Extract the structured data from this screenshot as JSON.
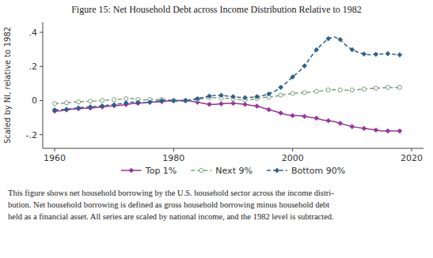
{
  "chart_data": {
    "type": "line",
    "title": "Figure 15: Net Household Debt across Income Distribution Relative to 1982",
    "y_label": "Scaled by NI, relative to 1982",
    "annotations": [
      "This figure shows net household borrowing by the U.S. household sector across the income distri-",
      "bution.  Net household borrowing is defined as gross household borrowing minus household debt",
      "held as a financial asset.  All series are scaled by national income, and the 1982 level is subtracted."
    ],
    "xlim": [
      1958,
      2022
    ],
    "ylim": [
      -0.28,
      0.46
    ],
    "xticks": [
      1960,
      1980,
      2000,
      2020
    ],
    "yticks": [
      {
        "value": -0.2,
        "label": "-.2"
      },
      0,
      {
        "value": 0.2,
        "label": ".2"
      },
      {
        "value": 0.4,
        "label": ".4"
      }
    ],
    "legend": "bottom",
    "grid": false,
    "x": [
      1960,
      1961,
      1962,
      1963,
      1964,
      1965,
      1966,
      1967,
      1968,
      1969,
      1970,
      1971,
      1972,
      1973,
      1974,
      1975,
      1976,
      1977,
      1978,
      1979,
      1980,
      1981,
      1982,
      1983,
      1984,
      1985,
      1986,
      1987,
      1988,
      1989,
      1990,
      1991,
      1992,
      1993,
      1994,
      1995,
      1996,
      1997,
      1998,
      1999,
      2000,
      2001,
      2002,
      2003,
      2004,
      2005,
      2006,
      2007,
      2008,
      2009,
      2010,
      2011,
      2012,
      2013,
      2014,
      2015,
      2016,
      2017,
      2018
    ],
    "series": [
      {
        "name": "Top 1%",
        "color": "#993399",
        "marker": "diamond",
        "line_style": "solid",
        "values": [
          -0.062,
          -0.06,
          -0.055,
          -0.05,
          -0.048,
          -0.045,
          -0.044,
          -0.041,
          -0.037,
          -0.034,
          -0.03,
          -0.028,
          -0.023,
          -0.018,
          -0.016,
          -0.013,
          -0.01,
          -0.008,
          -0.006,
          -0.003,
          -0.001,
          0.001,
          0.0,
          -0.004,
          -0.01,
          -0.016,
          -0.022,
          -0.022,
          -0.019,
          -0.016,
          -0.016,
          -0.019,
          -0.022,
          -0.028,
          -0.033,
          -0.043,
          -0.053,
          -0.063,
          -0.073,
          -0.083,
          -0.088,
          -0.088,
          -0.093,
          -0.098,
          -0.103,
          -0.113,
          -0.118,
          -0.123,
          -0.133,
          -0.143,
          -0.153,
          -0.158,
          -0.163,
          -0.168,
          -0.173,
          -0.178,
          -0.178,
          -0.178,
          -0.178
        ]
      },
      {
        "name": "Next 9%",
        "color": "#7a9e7a",
        "marker": "circle",
        "line_style": "dashed",
        "values": [
          -0.018,
          -0.016,
          -0.013,
          -0.01,
          -0.008,
          -0.006,
          -0.004,
          -0.002,
          0.001,
          0.003,
          0.005,
          0.008,
          0.011,
          0.012,
          0.006,
          0.003,
          0.006,
          0.006,
          0.006,
          0.003,
          0.001,
          -0.001,
          0.0,
          0.003,
          0.006,
          0.012,
          0.017,
          0.017,
          0.014,
          0.012,
          0.01,
          0.006,
          0.003,
          0.006,
          0.012,
          0.017,
          0.02,
          0.024,
          0.032,
          0.037,
          0.042,
          0.044,
          0.047,
          0.05,
          0.054,
          0.057,
          0.062,
          0.064,
          0.062,
          0.06,
          0.062,
          0.064,
          0.067,
          0.07,
          0.072,
          0.075,
          0.077,
          0.077,
          0.077
        ]
      },
      {
        "name": "Bottom 90%",
        "color": "#2e5f8a",
        "marker": "diamond",
        "line_style": "dashed",
        "values": [
          -0.055,
          -0.054,
          -0.051,
          -0.047,
          -0.043,
          -0.039,
          -0.037,
          -0.034,
          -0.031,
          -0.027,
          -0.024,
          -0.019,
          -0.014,
          -0.009,
          -0.011,
          -0.014,
          -0.009,
          -0.005,
          -0.001,
          0.001,
          -0.001,
          -0.001,
          0.0,
          0.006,
          0.011,
          0.019,
          0.026,
          0.031,
          0.031,
          0.026,
          0.023,
          0.019,
          0.017,
          0.019,
          0.023,
          0.029,
          0.039,
          0.054,
          0.077,
          0.107,
          0.138,
          0.168,
          0.203,
          0.253,
          0.298,
          0.333,
          0.363,
          0.373,
          0.358,
          0.323,
          0.298,
          0.283,
          0.273,
          0.268,
          0.271,
          0.273,
          0.275,
          0.271,
          0.268
        ]
      }
    ]
  }
}
